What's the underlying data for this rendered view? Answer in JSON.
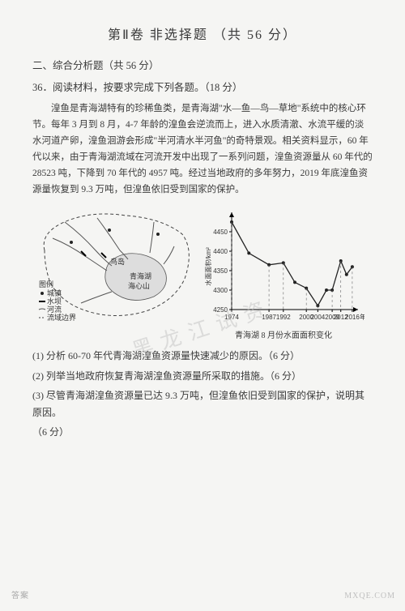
{
  "title_part1": "第Ⅱ卷",
  "title_part2": "非选择题",
  "title_part3": "（共 56 分）",
  "section_head": "二、综合分析题（共 56 分）",
  "q_number_line": "36．阅读材料，按要求完成下列各题。（18 分）",
  "passage": "湟鱼是青海湖特有的珍稀鱼类，是青海湖\"水—鱼—鸟—草地\"系统中的核心环节。每年 3 月到 8 月，4-7 年龄的湟鱼会逆流而上，进入水质清澈、水流平缓的淡水河道产卵，湟鱼洄游会形成\"半河清水半河鱼\"的奇特景观。相关资料显示，60 年代以来，由于青海湖流域在河流开发中出现了一系列问题，湟鱼资源量从 60 年代的 28523 吨，下降到 70 年代的 4957 吨。经过当地政府的多年努力，2019 年底湟鱼资源量恢复到 9.3 万吨，但湟鱼依旧受到国家的保护。",
  "map": {
    "label_bird_island": "鸟岛",
    "label_lake": "青海湖",
    "label_mountain": "海心山",
    "legend_title": "图例",
    "legend_items": [
      "城镇",
      "水坝",
      "河流",
      "流域边界"
    ],
    "lake_fill": "#dddddd",
    "boundary_stroke": "#444444",
    "river_stroke": "#555555"
  },
  "chart": {
    "type": "line",
    "y_label": "水面面积/km²",
    "x_ticks": [
      "1974",
      "1987",
      "1992",
      "2000",
      "2004",
      "2009",
      "2012",
      "2016",
      "年"
    ],
    "y_ticks": [
      4250,
      4300,
      4350,
      4400,
      4450
    ],
    "ylim": [
      4250,
      4500
    ],
    "points": [
      {
        "x": 1974,
        "y": 4475
      },
      {
        "x": 1980,
        "y": 4395
      },
      {
        "x": 1987,
        "y": 4365
      },
      {
        "x": 1992,
        "y": 4370
      },
      {
        "x": 1996,
        "y": 4320
      },
      {
        "x": 2000,
        "y": 4305
      },
      {
        "x": 2004,
        "y": 4260
      },
      {
        "x": 2007,
        "y": 4300
      },
      {
        "x": 2009,
        "y": 4300
      },
      {
        "x": 2012,
        "y": 4375
      },
      {
        "x": 2014,
        "y": 4340
      },
      {
        "x": 2016,
        "y": 4360
      }
    ],
    "line_color": "#222222",
    "marker_color": "#222222",
    "axis_color": "#000000",
    "grid_dash": "3,3",
    "caption": "青海湖 8 月份水面面积变化"
  },
  "subs": {
    "s1": "(1) 分析 60-70 年代青海湖湟鱼资源量快速减少的原因。（6 分）",
    "s2": "(2) 列举当地政府恢复青海湖湟鱼资源量所采取的措施。（6 分）",
    "s3a": "(3) 尽管青海湖湟鱼资源量已达 9.3 万吨，但湟鱼依旧受到国家的保护，说明其原因。",
    "s3b": "（6 分）"
  },
  "watermark": "黑龙江试资",
  "footer_left": "答案",
  "footer_right": "MXQE.COM"
}
